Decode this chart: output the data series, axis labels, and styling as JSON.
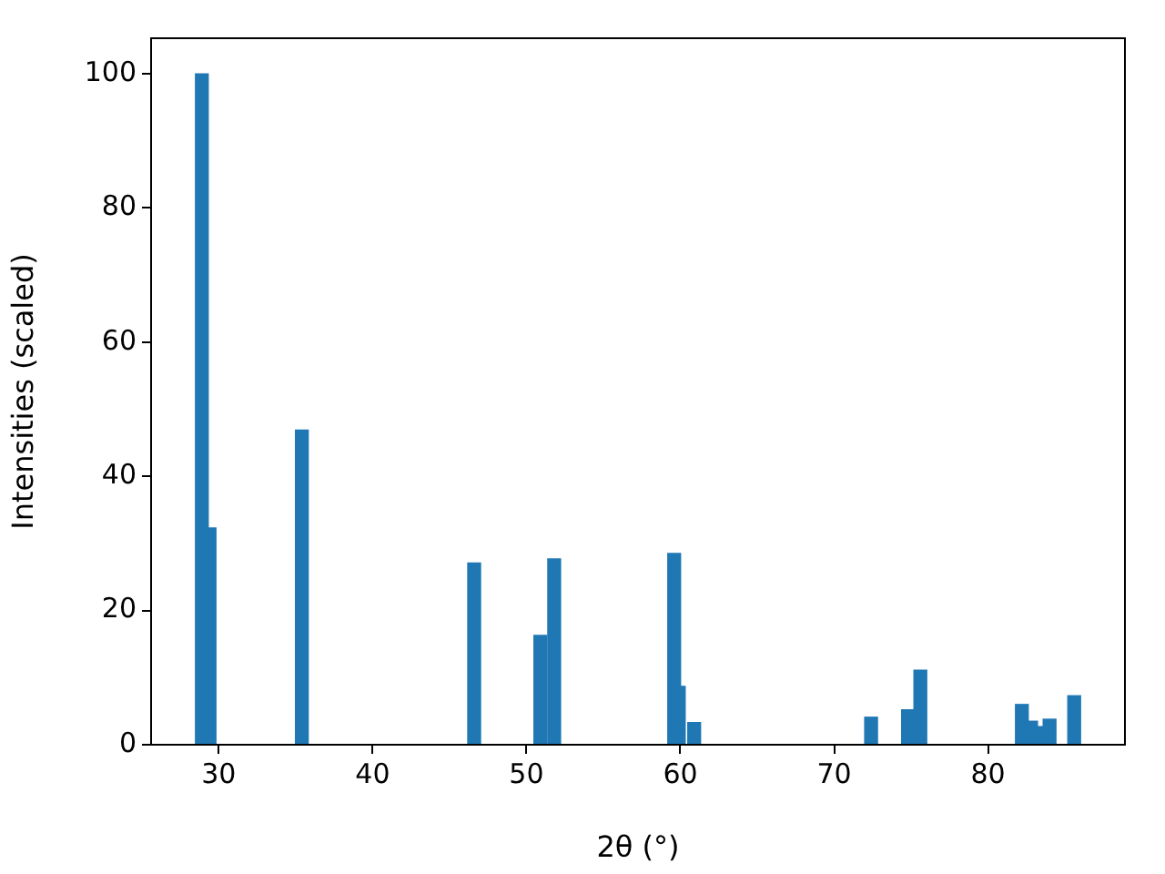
{
  "chart_data": {
    "type": "bar",
    "xlabel": "2θ (°)",
    "ylabel": "Intensities (scaled)",
    "x": [
      28.9,
      29.4,
      35.4,
      46.6,
      50.9,
      51.8,
      59.6,
      59.9,
      60.9,
      72.4,
      74.8,
      75.6,
      82.2,
      82.8,
      83.2,
      84.0,
      85.6
    ],
    "values": [
      100,
      32.3,
      46.9,
      27.1,
      16.3,
      27.7,
      28.5,
      8.7,
      3.3,
      4.1,
      5.2,
      11.1,
      6.0,
      3.5,
      2.7,
      3.8,
      7.3
    ],
    "color": "#1f77b4",
    "xlim": [
      25.6,
      88.9
    ],
    "xticks": [
      30,
      40,
      50,
      60,
      70,
      80
    ],
    "ylim": [
      0,
      105.3
    ],
    "yticks": [
      0,
      20,
      40,
      60,
      80,
      100
    ],
    "grid": false,
    "legend": false
  }
}
